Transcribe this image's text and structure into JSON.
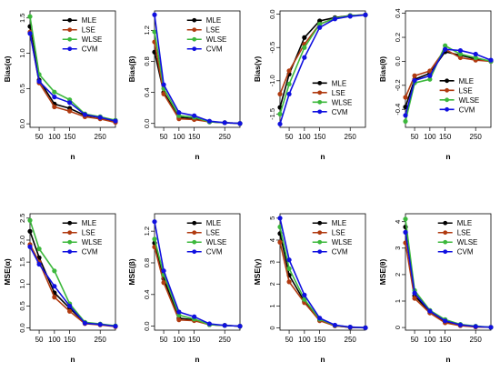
{
  "figure": {
    "legend_labels": [
      "MLE",
      "LSE",
      "WLSE",
      "CVM"
    ],
    "colors": {
      "MLE": "#000000",
      "LSE": "#b03a10",
      "WLSE": "#3cb83c",
      "CVM": "#1010e0"
    },
    "x_axis_label": "n"
  },
  "chart_data": [
    {
      "type": "line",
      "ylabel": "Bias(α)",
      "xlabel": "n",
      "xlim": [
        20,
        300
      ],
      "ylim": [
        -0.05,
        1.6
      ],
      "xticks": [
        50,
        100,
        150,
        250
      ],
      "yticks": [
        0.0,
        0.5,
        1.0,
        1.5
      ],
      "ytick_labels": [
        "0.0",
        "0.5",
        "1.0",
        "1.5"
      ],
      "legend": "top-right",
      "x": [
        20,
        50,
        100,
        150,
        200,
        250,
        300
      ],
      "series": [
        {
          "name": "MLE",
          "values": [
            1.38,
            0.62,
            0.28,
            0.22,
            0.12,
            0.09,
            0.03
          ]
        },
        {
          "name": "LSE",
          "values": [
            1.3,
            0.58,
            0.24,
            0.18,
            0.1,
            0.07,
            0.02
          ]
        },
        {
          "name": "WLSE",
          "values": [
            1.52,
            0.7,
            0.45,
            0.34,
            0.14,
            0.1,
            0.05
          ]
        },
        {
          "name": "CVM",
          "values": [
            1.28,
            0.6,
            0.38,
            0.3,
            0.13,
            0.09,
            0.04
          ]
        }
      ]
    },
    {
      "type": "line",
      "ylabel": "Bias(β)",
      "xlabel": "n",
      "xlim": [
        20,
        300
      ],
      "ylim": [
        -0.05,
        1.45
      ],
      "xticks": [
        50,
        100,
        150,
        250
      ],
      "yticks": [
        0.0,
        0.4,
        0.8,
        1.2
      ],
      "ytick_labels": [
        "0.0",
        "0.4",
        "0.8",
        "1.2"
      ],
      "legend": "top-right",
      "x": [
        20,
        50,
        100,
        150,
        200,
        250,
        300
      ],
      "series": [
        {
          "name": "MLE",
          "values": [
            0.92,
            0.4,
            0.08,
            0.06,
            0.02,
            0.01,
            0.0
          ]
        },
        {
          "name": "LSE",
          "values": [
            1.05,
            0.38,
            0.06,
            0.05,
            0.02,
            0.01,
            0.0
          ]
        },
        {
          "name": "WLSE",
          "values": [
            1.18,
            0.45,
            0.1,
            0.08,
            0.02,
            0.01,
            0.0
          ]
        },
        {
          "name": "CVM",
          "values": [
            1.4,
            0.5,
            0.14,
            0.1,
            0.03,
            0.01,
            0.0
          ]
        }
      ]
    },
    {
      "type": "line",
      "ylabel": "Bias(γ)",
      "xlabel": "n",
      "xlim": [
        20,
        300
      ],
      "ylim": [
        -1.7,
        0.05
      ],
      "xticks": [
        50,
        100,
        150,
        250
      ],
      "yticks": [
        -1.5,
        -1.0,
        -0.5,
        0.0
      ],
      "ytick_labels": [
        "-1.5",
        "-1.0",
        "-0.5",
        "0.0"
      ],
      "legend": "bottom-right",
      "x": [
        20,
        50,
        100,
        150,
        200,
        250,
        300
      ],
      "series": [
        {
          "name": "MLE",
          "values": [
            -1.4,
            -0.9,
            -0.35,
            -0.1,
            -0.05,
            -0.02,
            -0.01
          ]
        },
        {
          "name": "LSE",
          "values": [
            -1.2,
            -0.85,
            -0.45,
            -0.15,
            -0.06,
            -0.02,
            -0.01
          ]
        },
        {
          "name": "WLSE",
          "values": [
            -1.5,
            -1.05,
            -0.5,
            -0.15,
            -0.06,
            -0.02,
            -0.01
          ]
        },
        {
          "name": "CVM",
          "values": [
            -1.65,
            -1.2,
            -0.65,
            -0.2,
            -0.07,
            -0.03,
            -0.01
          ]
        }
      ]
    },
    {
      "type": "line",
      "ylabel": "Bias(θ)",
      "xlabel": "n",
      "xlim": [
        20,
        300
      ],
      "ylim": [
        -0.55,
        0.42
      ],
      "xticks": [
        50,
        100,
        150,
        250
      ],
      "yticks": [
        -0.4,
        -0.2,
        0.0,
        0.2,
        0.4
      ],
      "ytick_labels": [
        "-0.4",
        "-0.2",
        "0.0",
        "0.2",
        "0.4"
      ],
      "legend": "right",
      "x": [
        20,
        50,
        100,
        150,
        200,
        250,
        300
      ],
      "series": [
        {
          "name": "MLE",
          "values": [
            -0.38,
            -0.15,
            -0.1,
            0.08,
            0.05,
            0.02,
            0.0
          ]
        },
        {
          "name": "LSE",
          "values": [
            -0.3,
            -0.12,
            -0.08,
            0.1,
            0.03,
            0.01,
            0.0
          ]
        },
        {
          "name": "WLSE",
          "values": [
            -0.5,
            -0.18,
            -0.15,
            0.13,
            0.06,
            0.03,
            0.0
          ]
        },
        {
          "name": "CVM",
          "values": [
            -0.45,
            -0.16,
            -0.12,
            0.1,
            0.09,
            0.06,
            0.01
          ]
        }
      ]
    },
    {
      "type": "line",
      "ylabel": "MSE(α)",
      "xlabel": "n",
      "xlim": [
        20,
        300
      ],
      "ylim": [
        -0.05,
        2.6
      ],
      "xticks": [
        50,
        100,
        150,
        250
      ],
      "yticks": [
        0.0,
        0.5,
        1.0,
        1.5,
        2.0,
        2.5
      ],
      "ytick_labels": [
        "0.0",
        "0.5",
        "1.0",
        "1.5",
        "2.0",
        "2.5"
      ],
      "legend": "top-right",
      "x": [
        20,
        50,
        100,
        150,
        200,
        250,
        300
      ],
      "series": [
        {
          "name": "MLE",
          "values": [
            2.2,
            1.6,
            0.8,
            0.45,
            0.12,
            0.08,
            0.04
          ]
        },
        {
          "name": "LSE",
          "values": [
            1.9,
            1.5,
            0.7,
            0.38,
            0.1,
            0.07,
            0.03
          ]
        },
        {
          "name": "WLSE",
          "values": [
            2.45,
            1.8,
            1.3,
            0.55,
            0.13,
            0.09,
            0.05
          ]
        },
        {
          "name": "CVM",
          "values": [
            1.85,
            1.45,
            0.95,
            0.5,
            0.11,
            0.08,
            0.04
          ]
        }
      ]
    },
    {
      "type": "line",
      "ylabel": "MSE(β)",
      "xlabel": "n",
      "xlim": [
        20,
        300
      ],
      "ylim": [
        -0.05,
        1.42
      ],
      "xticks": [
        50,
        100,
        150,
        250
      ],
      "yticks": [
        0.0,
        0.4,
        0.8,
        1.2
      ],
      "ytick_labels": [
        "0.0",
        "0.4",
        "0.8",
        "1.2"
      ],
      "legend": "top-right",
      "x": [
        20,
        50,
        100,
        150,
        200,
        250,
        300
      ],
      "series": [
        {
          "name": "MLE",
          "values": [
            1.05,
            0.6,
            0.1,
            0.08,
            0.02,
            0.01,
            0.0
          ]
        },
        {
          "name": "LSE",
          "values": [
            1.0,
            0.55,
            0.08,
            0.07,
            0.02,
            0.01,
            0.0
          ]
        },
        {
          "name": "WLSE",
          "values": [
            1.1,
            0.65,
            0.14,
            0.09,
            0.02,
            0.01,
            0.0
          ]
        },
        {
          "name": "CVM",
          "values": [
            1.32,
            0.7,
            0.18,
            0.12,
            0.03,
            0.01,
            0.0
          ]
        }
      ]
    },
    {
      "type": "line",
      "ylabel": "MSE(γ)",
      "xlabel": "n",
      "xlim": [
        20,
        300
      ],
      "ylim": [
        -0.1,
        5.2
      ],
      "xticks": [
        50,
        100,
        150,
        250
      ],
      "yticks": [
        0,
        1,
        2,
        3,
        4,
        5
      ],
      "ytick_labels": [
        "0",
        "1",
        "2",
        "3",
        "4",
        "5"
      ],
      "legend": "top-right",
      "x": [
        20,
        50,
        100,
        150,
        200,
        250,
        300
      ],
      "series": [
        {
          "name": "MLE",
          "values": [
            4.3,
            2.4,
            1.2,
            0.35,
            0.1,
            0.03,
            0.01
          ]
        },
        {
          "name": "LSE",
          "values": [
            3.9,
            2.1,
            1.15,
            0.33,
            0.1,
            0.03,
            0.01
          ]
        },
        {
          "name": "WLSE",
          "values": [
            4.6,
            2.7,
            1.3,
            0.4,
            0.12,
            0.04,
            0.01
          ]
        },
        {
          "name": "CVM",
          "values": [
            5.0,
            3.1,
            1.5,
            0.45,
            0.13,
            0.04,
            0.01
          ]
        }
      ]
    },
    {
      "type": "line",
      "ylabel": "MSE(θ)",
      "xlabel": "n",
      "xlim": [
        20,
        300
      ],
      "ylim": [
        -0.1,
        4.3
      ],
      "xticks": [
        50,
        100,
        150,
        250
      ],
      "yticks": [
        0,
        1,
        2,
        3,
        4
      ],
      "ytick_labels": [
        "0",
        "1",
        "2",
        "3",
        "4"
      ],
      "legend": "top-right",
      "x": [
        20,
        50,
        100,
        150,
        200,
        250,
        300
      ],
      "series": [
        {
          "name": "MLE",
          "values": [
            3.8,
            1.2,
            0.6,
            0.2,
            0.08,
            0.03,
            0.01
          ]
        },
        {
          "name": "LSE",
          "values": [
            3.2,
            1.1,
            0.55,
            0.18,
            0.07,
            0.02,
            0.01
          ]
        },
        {
          "name": "WLSE",
          "values": [
            4.1,
            1.4,
            0.65,
            0.3,
            0.12,
            0.05,
            0.01
          ]
        },
        {
          "name": "CVM",
          "values": [
            3.6,
            1.3,
            0.62,
            0.25,
            0.1,
            0.04,
            0.01
          ]
        }
      ]
    }
  ]
}
